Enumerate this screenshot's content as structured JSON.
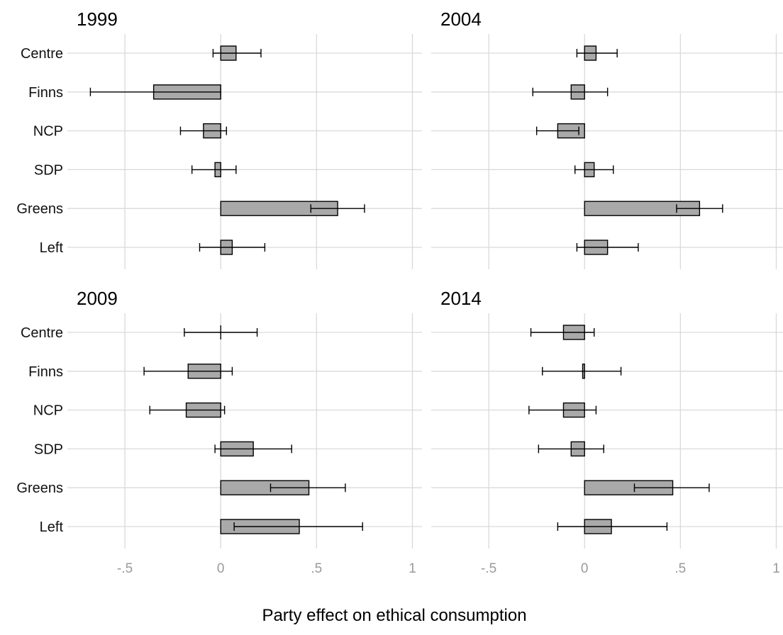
{
  "chart_data": {
    "type": "bar",
    "orientation": "horizontal",
    "xlabel": "Party effect on ethical consumption",
    "categories": [
      "Centre",
      "Finns",
      "NCP",
      "SDP",
      "Greens",
      "Left"
    ],
    "xlim": [
      -0.8,
      1.05
    ],
    "xticks": [
      -0.5,
      0,
      0.5,
      1
    ],
    "xtick_labels": [
      "-.5",
      "0",
      ".5",
      "1"
    ],
    "grid": true,
    "colors": {
      "bar": "#a9a9a9",
      "grid": "#d9d9d9",
      "tick_text": "#9a9a9a"
    },
    "panels": [
      {
        "title": "1999",
        "values": [
          0.08,
          -0.35,
          -0.09,
          -0.03,
          0.61,
          0.06
        ],
        "ci_low": [
          -0.04,
          -0.68,
          -0.21,
          -0.15,
          0.47,
          -0.11
        ],
        "ci_high": [
          0.21,
          0.0,
          0.03,
          0.08,
          0.75,
          0.23
        ]
      },
      {
        "title": "2004",
        "values": [
          0.06,
          -0.07,
          -0.14,
          0.05,
          0.6,
          0.12
        ],
        "ci_low": [
          -0.04,
          -0.27,
          -0.25,
          -0.05,
          0.48,
          -0.04
        ],
        "ci_high": [
          0.17,
          0.12,
          -0.03,
          0.15,
          0.72,
          0.28
        ]
      },
      {
        "title": "2009",
        "values": [
          0.0,
          -0.17,
          -0.18,
          0.17,
          0.46,
          0.41
        ],
        "ci_low": [
          -0.19,
          -0.4,
          -0.37,
          -0.03,
          0.26,
          0.07
        ],
        "ci_high": [
          0.19,
          0.06,
          0.02,
          0.37,
          0.65,
          0.74
        ]
      },
      {
        "title": "2014",
        "values": [
          -0.11,
          -0.01,
          -0.11,
          -0.07,
          0.46,
          0.14
        ],
        "ci_low": [
          -0.28,
          -0.22,
          -0.29,
          -0.24,
          0.26,
          -0.14
        ],
        "ci_high": [
          0.05,
          0.19,
          0.06,
          0.1,
          0.65,
          0.43
        ]
      }
    ]
  }
}
